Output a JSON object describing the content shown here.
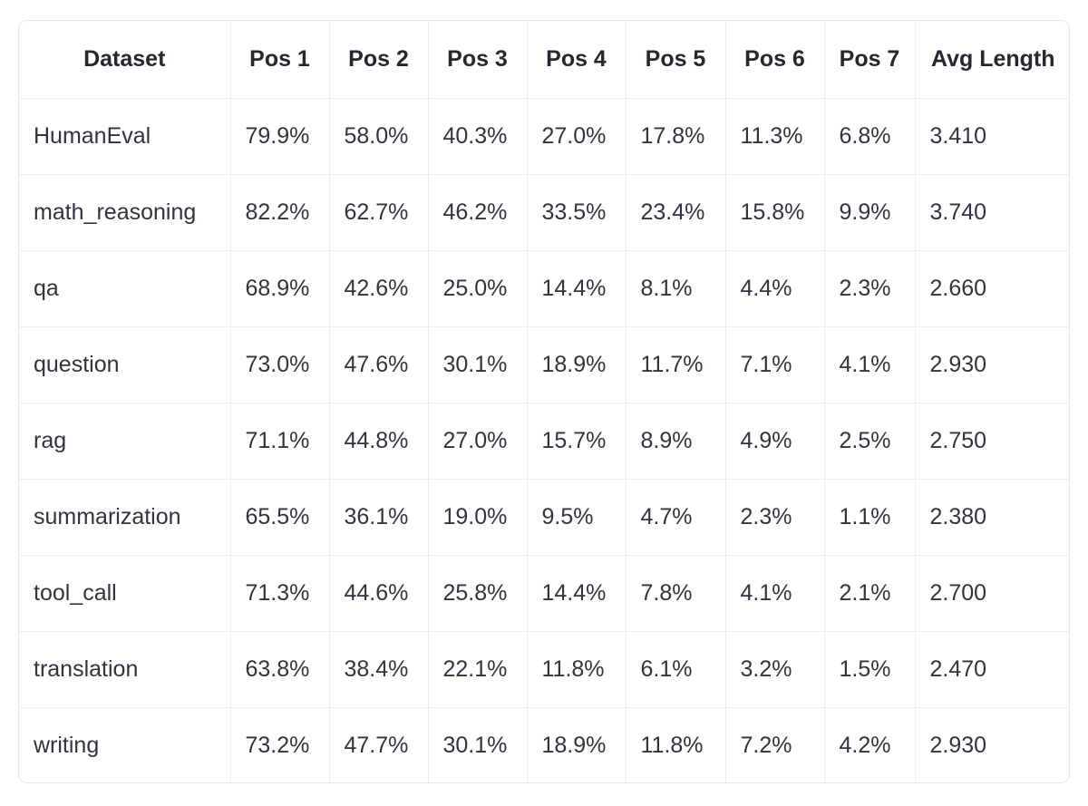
{
  "table": {
    "headers": [
      "Dataset",
      "Pos 1",
      "Pos 2",
      "Pos 3",
      "Pos 4",
      "Pos 5",
      "Pos 6",
      "Pos 7",
      "Avg Length"
    ],
    "rows": [
      [
        "HumanEval",
        "79.9%",
        "58.0%",
        "40.3%",
        "27.0%",
        "17.8%",
        "11.3%",
        "6.8%",
        "3.410"
      ],
      [
        "math_reasoning",
        "82.2%",
        "62.7%",
        "46.2%",
        "33.5%",
        "23.4%",
        "15.8%",
        "9.9%",
        "3.740"
      ],
      [
        "qa",
        "68.9%",
        "42.6%",
        "25.0%",
        "14.4%",
        "8.1%",
        "4.4%",
        "2.3%",
        "2.660"
      ],
      [
        "question",
        "73.0%",
        "47.6%",
        "30.1%",
        "18.9%",
        "11.7%",
        "7.1%",
        "4.1%",
        "2.930"
      ],
      [
        "rag",
        "71.1%",
        "44.8%",
        "27.0%",
        "15.7%",
        "8.9%",
        "4.9%",
        "2.5%",
        "2.750"
      ],
      [
        "summarization",
        "65.5%",
        "36.1%",
        "19.0%",
        "9.5%",
        "4.7%",
        "2.3%",
        "1.1%",
        "2.380"
      ],
      [
        "tool_call",
        "71.3%",
        "44.6%",
        "25.8%",
        "14.4%",
        "7.8%",
        "4.1%",
        "2.1%",
        "2.700"
      ],
      [
        "translation",
        "63.8%",
        "38.4%",
        "22.1%",
        "11.8%",
        "6.1%",
        "3.2%",
        "1.5%",
        "2.470"
      ],
      [
        "writing",
        "73.2%",
        "47.7%",
        "30.1%",
        "18.9%",
        "11.8%",
        "7.2%",
        "4.2%",
        "2.930"
      ]
    ]
  }
}
